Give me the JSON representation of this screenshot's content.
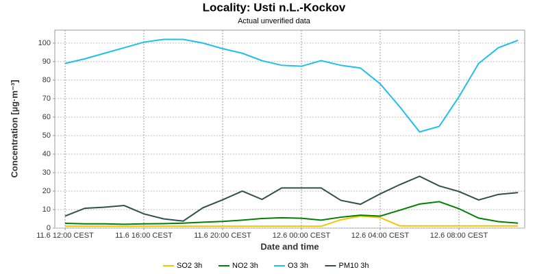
{
  "chart_data": {
    "type": "line",
    "title": "Locality: Usti n.L.-Kockov",
    "subtitle": "Actual unverified data",
    "x_label": "Date and time",
    "y_label": "Concentration [µg·m⁻³]",
    "categories": [
      "11.6 12:00 CEST",
      null,
      null,
      null,
      "11.6 16:00 CEST",
      null,
      null,
      null,
      "11.6 20:00 CEST",
      null,
      null,
      null,
      "12.6 00:00 CEST",
      null,
      null,
      null,
      "12.6 04:00 CEST",
      null,
      null,
      null,
      "12.6 08:00 CEST",
      null,
      null,
      null
    ],
    "series": [
      {
        "name": "SO2 3h",
        "color": "#f5c400",
        "values": [
          1,
          1,
          1,
          1,
          1,
          1,
          1,
          1,
          1,
          1,
          1,
          1,
          1,
          1,
          4.5,
          6.5,
          5.7,
          1.2,
          1.2,
          1.2,
          1.2,
          1.2,
          1.2,
          1.2
        ]
      },
      {
        "name": "NO2 3h",
        "color": "#008000",
        "values": [
          2.6,
          2.3,
          2.3,
          2.1,
          2.3,
          2.4,
          2.7,
          3.2,
          3.6,
          4.3,
          5.2,
          5.6,
          5.3,
          4.3,
          5.9,
          7,
          6.5,
          9.7,
          13,
          14.3,
          10.5,
          5.4,
          3.5,
          2.7
        ]
      },
      {
        "name": "O3 3h",
        "color": "#1ebeef",
        "values": [
          89,
          91.5,
          94.5,
          97.5,
          100.5,
          102,
          102,
          100,
          97,
          94.5,
          90.5,
          88,
          87.5,
          90.5,
          88,
          86.5,
          78,
          65.5,
          52,
          55,
          71,
          89,
          97.5,
          101.5
        ]
      },
      {
        "name": "PM10 3h",
        "color": "#2f4f4f",
        "values": [
          6.5,
          10.7,
          11.3,
          12.2,
          7.7,
          5,
          3.8,
          11,
          15.3,
          20,
          15.5,
          21.7,
          21.7,
          21.7,
          15,
          12.9,
          18.5,
          23.5,
          28,
          22.8,
          19.8,
          15.2,
          18.2,
          19.2
        ]
      }
    ],
    "ylim": [
      0,
      107
    ],
    "yticks": [
      0,
      10,
      20,
      30,
      40,
      50,
      60,
      70,
      80,
      90,
      100
    ],
    "grid": true,
    "legend": "bottom"
  }
}
